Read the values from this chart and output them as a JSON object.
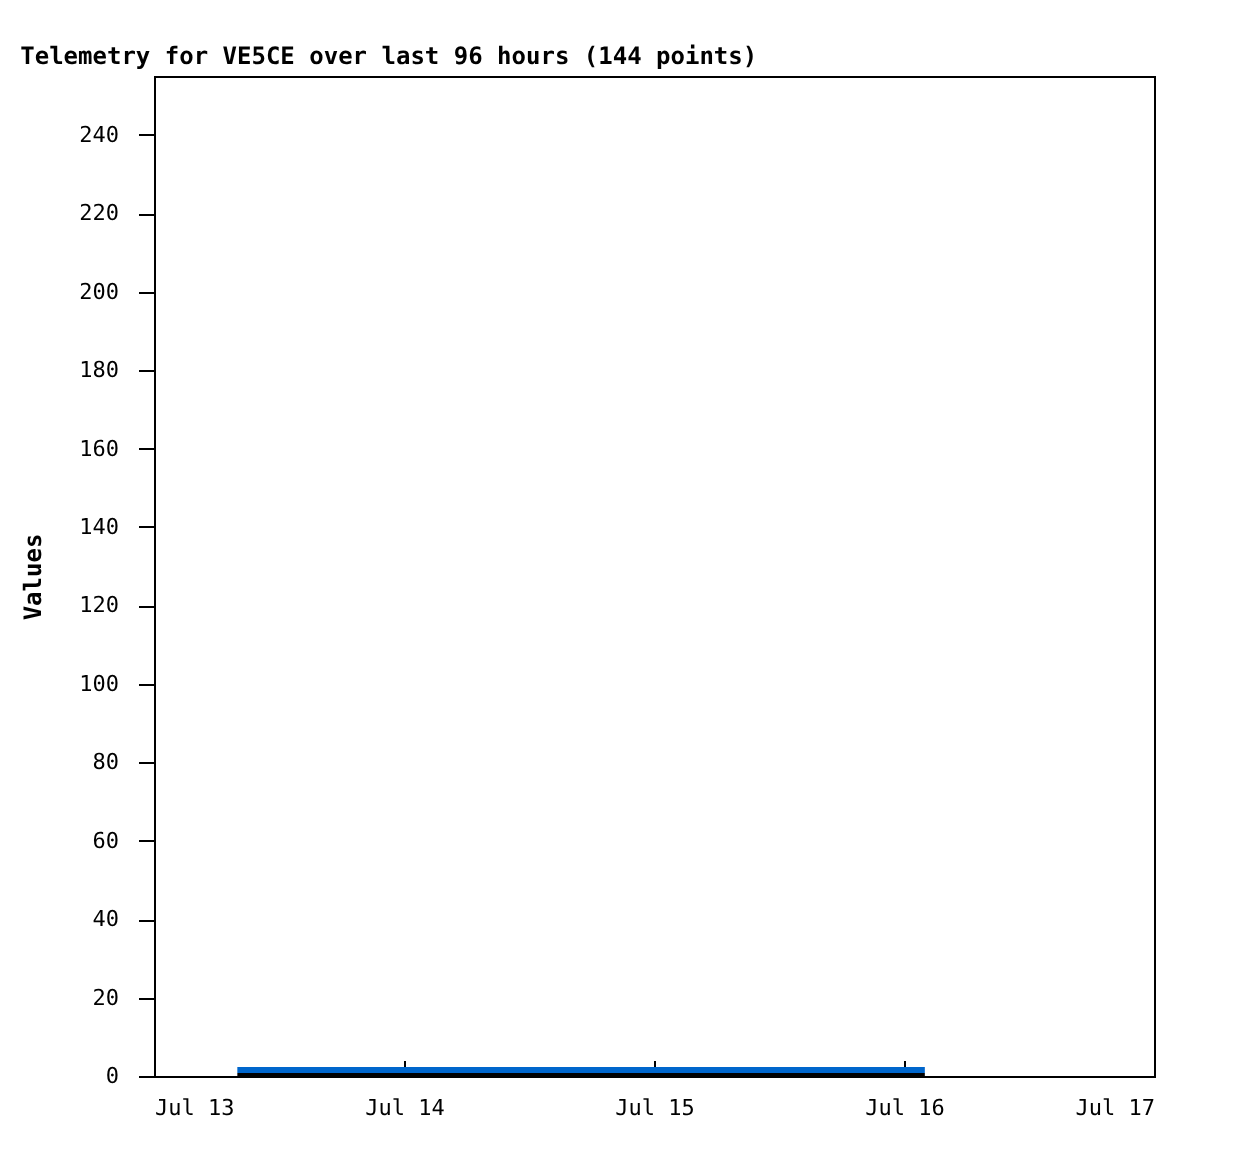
{
  "chart_data": {
    "type": "line",
    "title": "Telemetry for VE5CE over last 96 hours (144 points)",
    "ylabel": "Values",
    "xlim": [
      "--07-13",
      "--07-17"
    ],
    "xticks": [
      {
        "value": "--07-13",
        "label": "Jul 13"
      },
      {
        "value": "--07-14",
        "label": "Jul 14"
      },
      {
        "value": "--07-15",
        "label": "Jul 15"
      },
      {
        "value": "--07-16",
        "label": "Jul 16"
      },
      {
        "value": "--07-17",
        "label": "Jul 17"
      }
    ],
    "ylim": [
      0,
      255
    ],
    "yticks": [
      0,
      20,
      40,
      60,
      80,
      100,
      120,
      140,
      160,
      180,
      200,
      220,
      240
    ],
    "series": [
      {
        "color": "#000000",
        "x": [
          "--07-13T08:00",
          "--07-16T02:00"
        ],
        "values": [
          0,
          0
        ]
      },
      {
        "color": "#0066cc",
        "x": [
          "--07-13T08:00",
          "--07-16T02:00"
        ],
        "values": [
          1.5,
          1.5
        ]
      }
    ],
    "grid": false
  }
}
